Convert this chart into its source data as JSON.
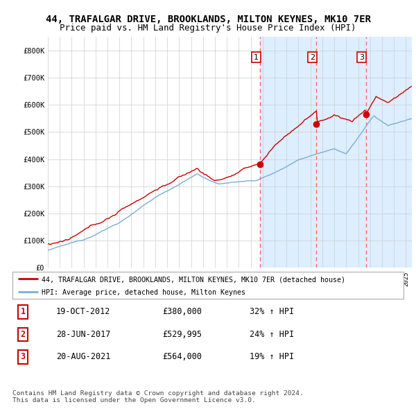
{
  "title": "44, TRAFALGAR DRIVE, BROOKLANDS, MILTON KEYNES, MK10 7ER",
  "subtitle": "Price paid vs. HM Land Registry's House Price Index (HPI)",
  "title_fontsize": 10,
  "subtitle_fontsize": 9,
  "ylim": [
    0,
    850000
  ],
  "yticks": [
    0,
    100000,
    200000,
    300000,
    400000,
    500000,
    600000,
    700000,
    800000
  ],
  "yticklabels": [
    "£0",
    "£100K",
    "£200K",
    "£300K",
    "£400K",
    "£500K",
    "£600K",
    "£700K",
    "£800K"
  ],
  "background_color": "#ffffff",
  "plot_bg_color": "#ffffff",
  "grid_color": "#cccccc",
  "red_line_color": "#cc0000",
  "blue_line_color": "#7aadd4",
  "span_color": "#ddeeff",
  "vline_color": "#ff6666",
  "purchases": [
    {
      "date_num": 2012.8,
      "price": 380000,
      "label": "1"
    },
    {
      "date_num": 2017.5,
      "price": 529995,
      "label": "2"
    },
    {
      "date_num": 2021.65,
      "price": 564000,
      "label": "3"
    }
  ],
  "legend_red_label": "44, TRAFALGAR DRIVE, BROOKLANDS, MILTON KEYNES, MK10 7ER (detached house)",
  "legend_blue_label": "HPI: Average price, detached house, Milton Keynes",
  "table_rows": [
    [
      "1",
      "19-OCT-2012",
      "£380,000",
      "32% ↑ HPI"
    ],
    [
      "2",
      "28-JUN-2017",
      "£529,995",
      "24% ↑ HPI"
    ],
    [
      "3",
      "20-AUG-2021",
      "£564,000",
      "19% ↑ HPI"
    ]
  ],
  "footer": "Contains HM Land Registry data © Crown copyright and database right 2024.\nThis data is licensed under the Open Government Licence v3.0.",
  "xstart": 1995.0,
  "xend": 2025.5
}
